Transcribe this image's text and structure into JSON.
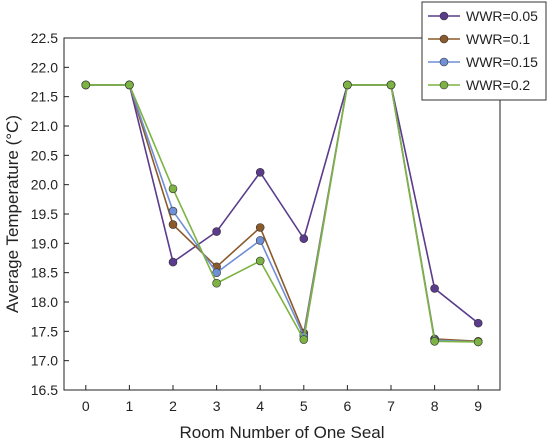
{
  "chart_data": {
    "type": "line",
    "title": "",
    "xlabel": "Room Number of One Seal",
    "ylabel": "Average Temperature (°C)",
    "x": [
      0,
      1,
      2,
      3,
      4,
      5,
      6,
      7,
      8,
      9
    ],
    "xlim": [
      -0.5,
      9.5
    ],
    "ylim": [
      16.5,
      22.5
    ],
    "y_ticks": [
      16.5,
      17.0,
      17.5,
      18.0,
      18.5,
      19.0,
      19.5,
      20.0,
      20.5,
      21.0,
      21.5,
      22.0,
      22.5
    ],
    "x_ticks": [
      0,
      1,
      2,
      3,
      4,
      5,
      6,
      7,
      8,
      9
    ],
    "grid": false,
    "legend_position": "top-right",
    "series": [
      {
        "name": "WWR=0.05",
        "color": "#5a3b8c",
        "values": [
          21.7,
          21.7,
          18.68,
          19.2,
          20.21,
          19.08,
          21.7,
          21.7,
          18.23,
          17.64
        ]
      },
      {
        "name": "WWR=0.1",
        "color": "#8b5a2b",
        "values": [
          21.7,
          21.7,
          19.32,
          18.6,
          19.27,
          17.47,
          21.7,
          21.7,
          17.37,
          17.33
        ]
      },
      {
        "name": "WWR=0.15",
        "color": "#6f8fd6",
        "values": [
          21.7,
          21.7,
          19.55,
          18.5,
          19.05,
          17.42,
          21.7,
          21.7,
          17.35,
          17.32
        ]
      },
      {
        "name": "WWR=0.2",
        "color": "#7cb342",
        "values": [
          21.7,
          21.7,
          19.93,
          18.32,
          18.7,
          17.36,
          21.7,
          21.7,
          17.33,
          17.32
        ]
      }
    ]
  }
}
